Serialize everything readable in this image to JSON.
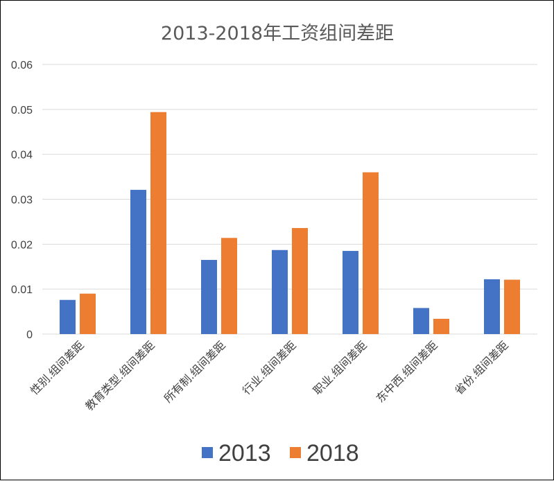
{
  "chart_data": {
    "type": "bar",
    "title": "2013-2018年工资组间差距",
    "categories": [
      "性别.组间差距",
      "教育类型.组间差距",
      "所有制.组间差距",
      "行业.组间差距",
      "职业.组间差距",
      "东中西.组间差距",
      "省份.组间差距"
    ],
    "series": [
      {
        "name": "2013",
        "values": [
          0.0076,
          0.0321,
          0.0165,
          0.0187,
          0.0185,
          0.0058,
          0.0122
        ]
      },
      {
        "name": "2018",
        "values": [
          0.009,
          0.0494,
          0.0214,
          0.0236,
          0.036,
          0.0034,
          0.0121
        ]
      }
    ],
    "ylim": [
      0,
      0.06
    ],
    "yticks": [
      "0",
      "0.01",
      "0.02",
      "0.03",
      "0.04",
      "0.05",
      "0.06"
    ],
    "xlabel": "",
    "ylabel": "",
    "grid": true,
    "legend_position": "bottom",
    "colors": {
      "2013": "#4472c4",
      "2018": "#ed7d31"
    }
  }
}
